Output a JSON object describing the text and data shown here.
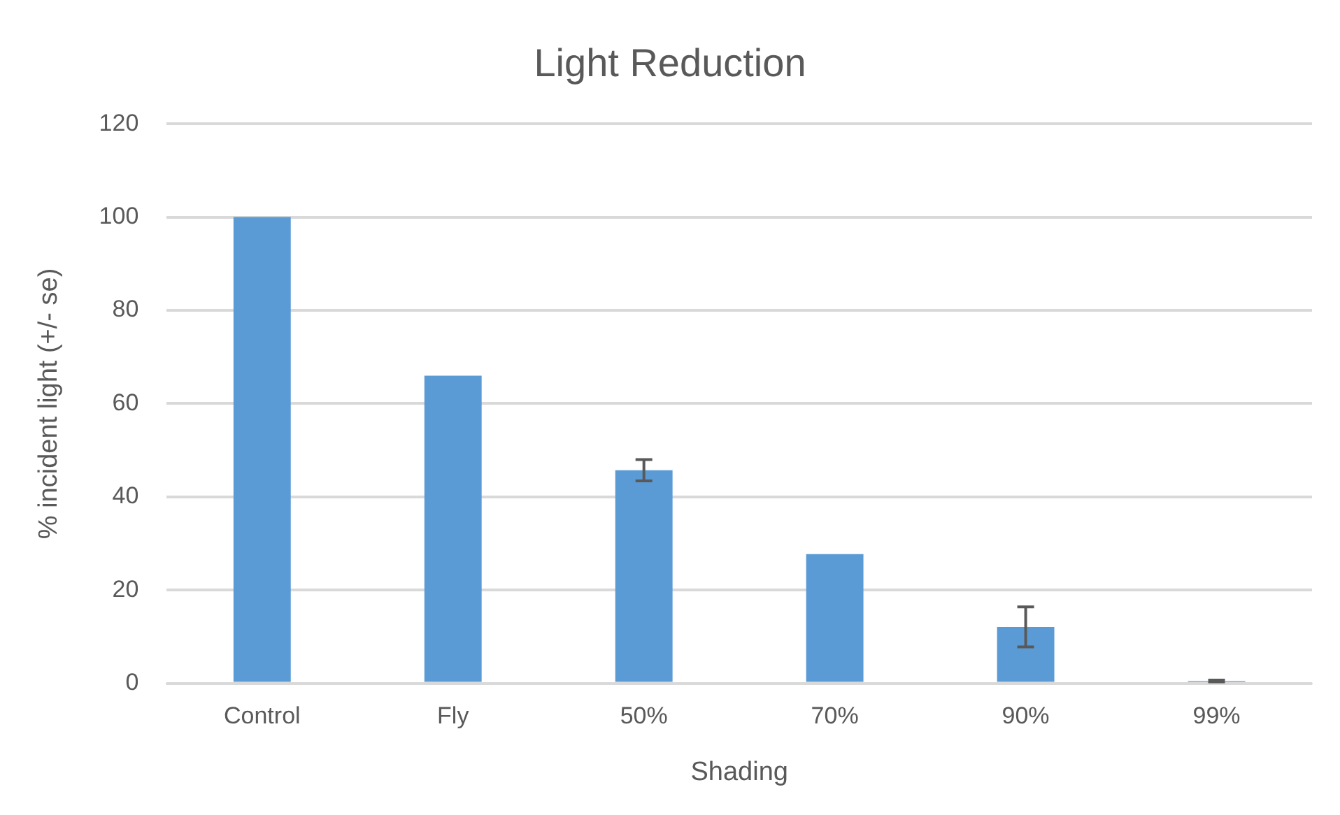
{
  "chart_data": {
    "type": "bar",
    "title": "Light Reduction",
    "xlabel": "Shading",
    "ylabel": "% incident light (+/- se)",
    "categories": [
      "Control",
      "Fly",
      "50%",
      "70%",
      "90%",
      "99%"
    ],
    "values": [
      100,
      66,
      45.7,
      27.7,
      12.1,
      0.5
    ],
    "errors": [
      null,
      null,
      2.3,
      null,
      4.3,
      0.2
    ],
    "color": "#5b9bd5",
    "ylim": [
      0,
      120
    ],
    "yticks": [
      0,
      20,
      40,
      60,
      80,
      100,
      120
    ],
    "grid": "y",
    "legend": false
  }
}
